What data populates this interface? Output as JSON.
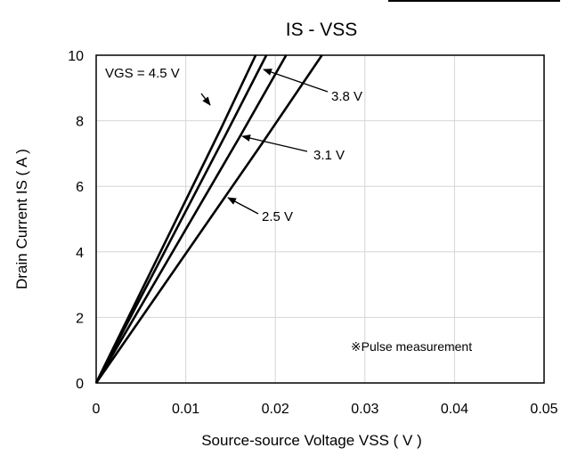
{
  "chart_data": {
    "type": "line",
    "title": "IS - VSS",
    "xlabel": "Source-source Voltage VSS ( V )",
    "ylabel": "Drain Current IS ( A )",
    "xlim": [
      0,
      0.05
    ],
    "ylim": [
      0,
      10
    ],
    "xticks": [
      "0",
      "0.01",
      "0.02",
      "0.03",
      "0.04",
      "0.05"
    ],
    "yticks": [
      "0",
      "2",
      "4",
      "6",
      "8",
      "10"
    ],
    "grid": true,
    "series": [
      {
        "name": "VGS = 4.5 V",
        "x": [
          0,
          0.014,
          0.0178
        ],
        "y": [
          0,
          7.8,
          10
        ]
      },
      {
        "name": "3.8 V",
        "x": [
          0,
          0.0145,
          0.019
        ],
        "y": [
          0,
          7.6,
          10
        ]
      },
      {
        "name": "3.1 V",
        "x": [
          0,
          0.016,
          0.0212
        ],
        "y": [
          0,
          7.5,
          10
        ]
      },
      {
        "name": "2.5 V",
        "x": [
          0,
          0.0185,
          0.0252
        ],
        "y": [
          0,
          7.3,
          10
        ]
      }
    ],
    "annotations": [
      {
        "text": "VGS = 4.5 V"
      },
      {
        "text": "3.8 V"
      },
      {
        "text": "3.1 V"
      },
      {
        "text": "2.5 V"
      }
    ],
    "note": "※Pulse measurement"
  }
}
